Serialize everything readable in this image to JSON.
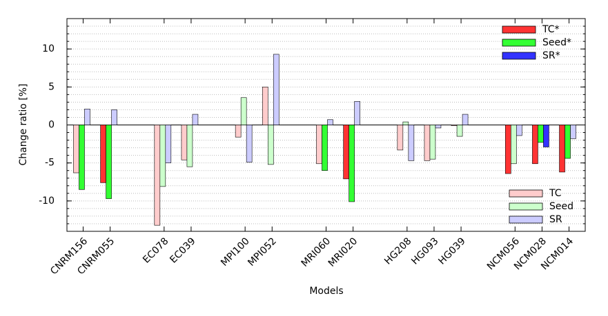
{
  "chart_data": {
    "type": "bar",
    "xlabel": "Models",
    "ylabel": "Change ratio [%]",
    "categories": [
      "CNRM156",
      "CNRM055",
      null,
      "EC078",
      "EC039",
      null,
      "MPI100",
      "MPI052",
      null,
      "MRI060",
      "MRI020",
      null,
      "HG208",
      "HG093",
      "HG039",
      null,
      "NCM056",
      "NCM028",
      "NCM014"
    ],
    "series": [
      {
        "name": "TC",
        "color": "#ffcccc",
        "sig_name": "TC*",
        "sig_color": "#ff3333",
        "values": [
          -6.3,
          -7.6,
          null,
          -13.2,
          -4.6,
          null,
          -1.6,
          5.0,
          null,
          -5.1,
          -7.1,
          null,
          -3.3,
          -4.7,
          -0.1,
          null,
          -6.4,
          -5.1,
          -6.2
        ],
        "significant": [
          false,
          true,
          null,
          false,
          false,
          null,
          false,
          false,
          null,
          false,
          true,
          null,
          false,
          false,
          false,
          null,
          true,
          true,
          true
        ]
      },
      {
        "name": "Seed",
        "color": "#ccffcc",
        "sig_name": "Seed*",
        "sig_color": "#33ff33",
        "values": [
          -8.5,
          -9.7,
          null,
          -8.1,
          -5.5,
          null,
          3.6,
          -5.2,
          null,
          -6.0,
          -10.1,
          null,
          0.4,
          -4.5,
          -1.5,
          null,
          -5.1,
          -2.3,
          -4.4
        ],
        "significant": [
          true,
          true,
          null,
          false,
          false,
          null,
          false,
          false,
          null,
          true,
          true,
          null,
          false,
          false,
          false,
          null,
          false,
          true,
          true
        ]
      },
      {
        "name": "SR",
        "color": "#ccccff",
        "sig_name": "SR*",
        "sig_color": "#3333ff",
        "values": [
          2.1,
          2.0,
          null,
          -5.0,
          1.4,
          null,
          -4.9,
          9.3,
          null,
          0.7,
          3.1,
          null,
          -4.7,
          -0.4,
          1.4,
          null,
          -1.4,
          -2.9,
          -1.8
        ],
        "significant": [
          false,
          false,
          null,
          false,
          false,
          null,
          false,
          false,
          null,
          false,
          false,
          null,
          false,
          false,
          false,
          null,
          false,
          true,
          false
        ]
      }
    ],
    "ylim": [
      -14,
      14
    ],
    "yticks": [
      -10,
      -5,
      0,
      5,
      10
    ],
    "minor_grid_step": 1,
    "grid": true
  }
}
